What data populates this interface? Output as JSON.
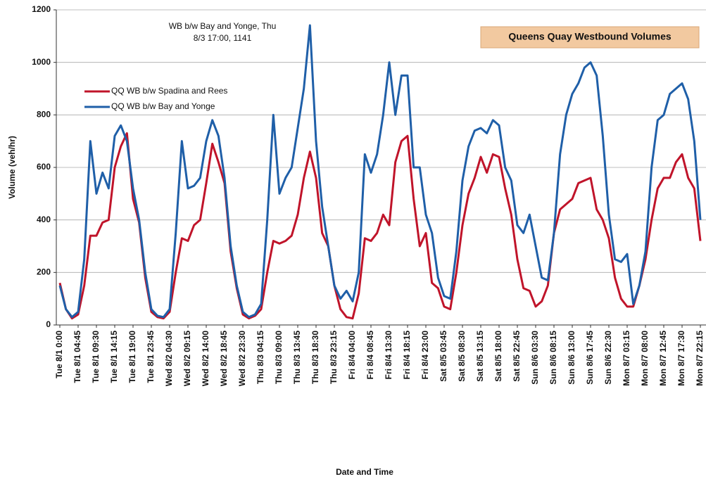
{
  "chart_data": {
    "type": "line",
    "title": "Queens Quay Westbound Volumes",
    "annotation": [
      "WB b/w Bay and Yonge, Thu",
      "8/3 17:00, 1141"
    ],
    "xlabel": "Date and Time",
    "ylabel": "Volume (veh/hr)",
    "ylim": [
      0,
      1200
    ],
    "yticks": [
      0,
      200,
      400,
      600,
      800,
      1000,
      1200
    ],
    "grid": true,
    "legend": "upper left",
    "categories": [
      "Tue 8/1 0:00",
      null,
      null,
      "Tue 8/1 04:45",
      null,
      null,
      "Tue 8/1 09:30",
      null,
      null,
      "Tue 8/1 14:15",
      null,
      null,
      "Tue 8/1 19:00",
      null,
      null,
      "Tue 8/1 23:45",
      null,
      null,
      "Wed 8/2 04:30",
      null,
      null,
      "Wed 8/2 09:15",
      null,
      null,
      "Wed 8/2 14:00",
      null,
      null,
      "Wed 8/2 18:45",
      null,
      null,
      "Wed 8/2 23:30",
      null,
      null,
      "Thu 8/3 04:15",
      null,
      null,
      "Thu 8/3 09:00",
      null,
      null,
      "Thu 8/3 13:45",
      null,
      null,
      "Thu 8/3 18:30",
      null,
      null,
      "Thu 8/3 23:15",
      null,
      null,
      "Fri 8/4 04:00",
      null,
      null,
      "Fri 8/4 08:45",
      null,
      null,
      "Fri 8/4 13:30",
      null,
      null,
      "Fri 8/4 18:15",
      null,
      null,
      "Fri 8/4 23:00",
      null,
      null,
      "Sat 8/5 03:45",
      null,
      null,
      "Sat 8/5 08:30",
      null,
      null,
      "Sat 8/5 13:15",
      null,
      null,
      "Sat 8/5 18:00",
      null,
      null,
      "Sat 8/5 22:45",
      null,
      null,
      "Sun 8/6 03:30",
      null,
      null,
      "Sun 8/6 08:15",
      null,
      null,
      "Sun 8/6 13:00",
      null,
      null,
      "Sun 8/6 17:45",
      null,
      null,
      "Sun 8/6 22:30",
      null,
      null,
      "Mon 8/7 03:15",
      null,
      null,
      "Mon 8/7 08:00",
      null,
      null,
      "Mon 8/7 12:45",
      null,
      null,
      "Mon 8/7 17:30",
      null,
      null,
      "Mon 8/7 22:15"
    ],
    "series": [
      {
        "name": "QQ WB b/w Spadina and Rees",
        "color": "#c0142a",
        "values": [
          160,
          60,
          25,
          40,
          150,
          340,
          340,
          390,
          400,
          600,
          680,
          730,
          480,
          390,
          180,
          50,
          30,
          25,
          50,
          200,
          330,
          320,
          380,
          400,
          540,
          690,
          620,
          540,
          280,
          140,
          40,
          25,
          35,
          60,
          200,
          320,
          310,
          320,
          340,
          420,
          560,
          660,
          560,
          350,
          300,
          150,
          60,
          30,
          25,
          120,
          330,
          320,
          350,
          420,
          380,
          620,
          700,
          720,
          480,
          300,
          350,
          160,
          140,
          70,
          60,
          200,
          380,
          500,
          560,
          640,
          580,
          650,
          640,
          520,
          420,
          250,
          140,
          130,
          70,
          90,
          150,
          350,
          440,
          460,
          480,
          540,
          550,
          560,
          440,
          400,
          330,
          180,
          100,
          70,
          70,
          150,
          250,
          400,
          520,
          560,
          560,
          620,
          650,
          560,
          520,
          320
        ]
      },
      {
        "name": "QQ WB b/w Bay and Yonge",
        "color": "#1f5fa8",
        "values": [
          150,
          60,
          30,
          50,
          250,
          700,
          500,
          580,
          520,
          720,
          760,
          700,
          520,
          400,
          200,
          60,
          35,
          30,
          60,
          350,
          700,
          520,
          530,
          560,
          700,
          780,
          720,
          560,
          300,
          150,
          50,
          30,
          40,
          80,
          400,
          800,
          500,
          560,
          600,
          750,
          900,
          1141,
          700,
          450,
          300,
          150,
          100,
          130,
          90,
          200,
          650,
          580,
          650,
          800,
          1000,
          800,
          950,
          950,
          600,
          600,
          420,
          350,
          180,
          110,
          100,
          280,
          550,
          680,
          740,
          750,
          730,
          780,
          760,
          600,
          550,
          380,
          350,
          420,
          300,
          180,
          170,
          350,
          650,
          800,
          880,
          920,
          980,
          1000,
          950,
          720,
          420,
          250,
          240,
          270,
          80,
          150,
          280,
          600,
          780,
          800,
          880,
          900,
          920,
          860,
          700,
          400
        ]
      }
    ]
  }
}
